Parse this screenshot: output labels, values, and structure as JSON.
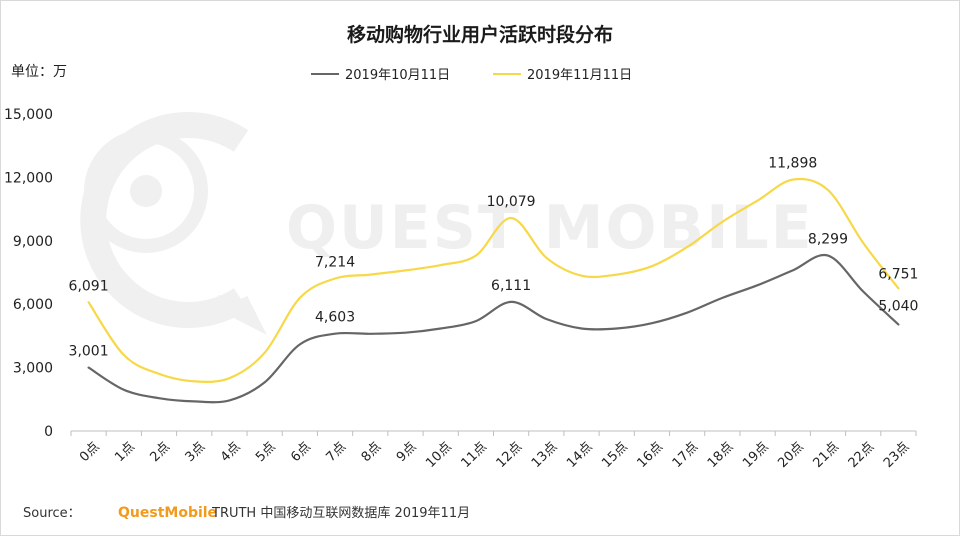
{
  "chart_data": {
    "type": "line",
    "title": "移动购物行业用户活跃时段分布",
    "unit_label": "单位：万",
    "categories": [
      "0点",
      "1点",
      "2点",
      "3点",
      "4点",
      "5点",
      "6点",
      "7点",
      "8点",
      "9点",
      "10点",
      "11点",
      "12点",
      "13点",
      "14点",
      "15点",
      "16点",
      "17点",
      "18点",
      "19点",
      "20点",
      "21点",
      "22点",
      "23点"
    ],
    "series": [
      {
        "name": "2019年10月11日",
        "color": "#666666",
        "values": [
          3001,
          1950,
          1550,
          1400,
          1450,
          2300,
          4100,
          4603,
          4600,
          4650,
          4850,
          5200,
          6111,
          5300,
          4850,
          4850,
          5100,
          5600,
          6300,
          6900,
          7600,
          8299,
          6600,
          5040
        ],
        "labels": {
          "0": "3,001",
          "7": "4,603",
          "12": "6,111",
          "21": "8,299",
          "23": "5,040"
        }
      },
      {
        "name": "2019年11月11日",
        "color": "#f7d848",
        "values": [
          6091,
          3600,
          2700,
          2350,
          2500,
          3700,
          6300,
          7214,
          7400,
          7600,
          7850,
          8300,
          10079,
          8200,
          7350,
          7400,
          7800,
          8700,
          9900,
          10900,
          11898,
          11400,
          8900,
          6751
        ],
        "labels": {
          "0": "6,091",
          "7": "7,214",
          "12": "10,079",
          "20": "11,898",
          "23": "6,751"
        }
      }
    ],
    "y_ticks": [
      "0",
      "3,000",
      "6,000",
      "9,000",
      "12,000",
      "15,000"
    ],
    "y_tick_values": [
      0,
      3000,
      6000,
      9000,
      12000,
      15000
    ],
    "ylim": [
      0,
      15000
    ],
    "grid": false,
    "legend_position": "top-center"
  },
  "source": {
    "prefix": "Source：",
    "brand": "QuestMobile",
    "rest": "TRUTH 中国移动互联网数据库 2019年11月"
  },
  "watermark": {
    "text": "QUEST MOBILE"
  }
}
